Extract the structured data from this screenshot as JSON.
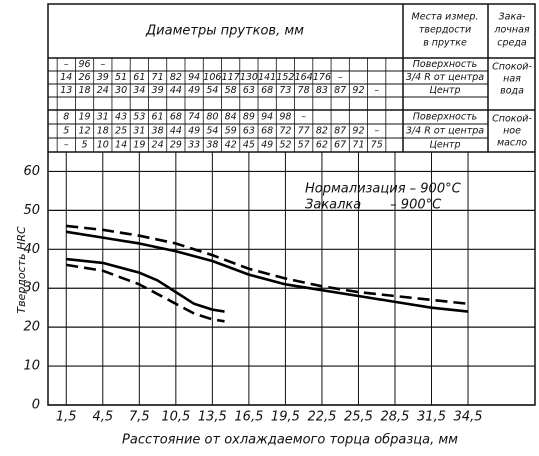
{
  "header_table": {
    "diameter_header": "Диаметры прутков, мм",
    "position_header": [
      "Места измер.",
      "твердости",
      "в прутке"
    ],
    "medium_header": [
      "Зака-",
      "лочная",
      "среда"
    ],
    "groups": [
      {
        "medium": [
          "Спокой-",
          "ная",
          "вода"
        ],
        "rows": [
          {
            "position": "Поверхность",
            "values": [
              "–",
              "96",
              "–"
            ]
          },
          {
            "position": "3/4 R от центра",
            "values": [
              "14",
              "26",
              "39",
              "51",
              "61",
              "71",
              "82",
              "94",
              "106",
              "117",
              "130",
              "141",
              "152",
              "164",
              "176",
              "–"
            ]
          },
          {
            "position": "Центр",
            "values": [
              "13",
              "18",
              "24",
              "30",
              "34",
              "39",
              "44",
              "49",
              "54",
              "58",
              "63",
              "68",
              "73",
              "78",
              "83",
              "87",
              "92",
              "–"
            ]
          }
        ]
      },
      {
        "medium": [
          "Спокой-",
          "ное",
          "масло"
        ],
        "rows": [
          {
            "position": "Поверхность",
            "values": [
              "8",
              "19",
              "31",
              "43",
              "53",
              "61",
              "68",
              "74",
              "80",
              "84",
              "89",
              "94",
              "98",
              "–"
            ]
          },
          {
            "position": "3/4 R от центра",
            "values": [
              "5",
              "12",
              "18",
              "25",
              "31",
              "38",
              "44",
              "49",
              "54",
              "59",
              "63",
              "68",
              "72",
              "77",
              "82",
              "87",
              "92",
              "–"
            ]
          },
          {
            "position": "Центр",
            "values": [
              "–",
              "5",
              "10",
              "14",
              "19",
              "24",
              "29",
              "33",
              "38",
              "42",
              "45",
              "49",
              "52",
              "57",
              "62",
              "67",
              "71",
              "75"
            ]
          }
        ]
      }
    ]
  },
  "chart_data": {
    "type": "line",
    "x_label": "Расстояние от охлаждаемого торца образца, мм",
    "y_label": "Твердость HRC",
    "annotations": [
      "Нормализация – 900°C",
      "Закалка       – 900°C"
    ],
    "xlim": [
      0,
      40
    ],
    "ylim": [
      0,
      65
    ],
    "xticks": [
      {
        "value": 1.5,
        "label": "1,5"
      },
      {
        "value": 4.5,
        "label": "4,5"
      },
      {
        "value": 7.5,
        "label": "7,5"
      },
      {
        "value": 10.5,
        "label": "10,5"
      },
      {
        "value": 13.5,
        "label": "13,5"
      },
      {
        "value": 16.5,
        "label": "16,5"
      },
      {
        "value": 19.5,
        "label": "19,5"
      },
      {
        "value": 22.5,
        "label": "22,5"
      },
      {
        "value": 25.5,
        "label": "25,5"
      },
      {
        "value": 28.5,
        "label": "28,5"
      },
      {
        "value": 31.5,
        "label": "31,5"
      },
      {
        "value": 34.5,
        "label": "34,5"
      }
    ],
    "yticks": [
      0,
      10,
      20,
      30,
      40,
      50,
      60
    ],
    "grid": true,
    "series": [
      {
        "color": "#000",
        "dashed": true,
        "x": [
          1.5,
          4.5,
          7.5,
          10.5,
          13.5,
          16.5,
          19.5,
          22.5,
          25.5,
          28.5,
          31.5,
          34.5
        ],
        "values": [
          46,
          45,
          43.5,
          41.5,
          38.5,
          35,
          32.5,
          30.5,
          29,
          28,
          27,
          26
        ]
      },
      {
        "color": "#000",
        "dashed": false,
        "x": [
          1.5,
          4.5,
          7.5,
          10.5,
          13.5,
          16.5,
          19.5,
          22.5,
          25.5,
          28.5,
          31.5,
          34.5
        ],
        "values": [
          44.5,
          43,
          41.5,
          39.5,
          37,
          33.5,
          31,
          29.5,
          28,
          26.5,
          25,
          24
        ]
      },
      {
        "color": "#000",
        "dashed": false,
        "x": [
          1.5,
          4.5,
          7.5,
          9,
          10.5,
          12,
          13.5,
          14.5
        ],
        "values": [
          37.5,
          36.5,
          34,
          32,
          29,
          26,
          24.5,
          24
        ]
      },
      {
        "color": "#000",
        "dashed": true,
        "x": [
          1.5,
          4.5,
          7.5,
          9,
          10.5,
          12,
          13.5,
          14.5
        ],
        "values": [
          36,
          34.5,
          31,
          28.5,
          26,
          23.5,
          22,
          21.5
        ]
      }
    ]
  }
}
